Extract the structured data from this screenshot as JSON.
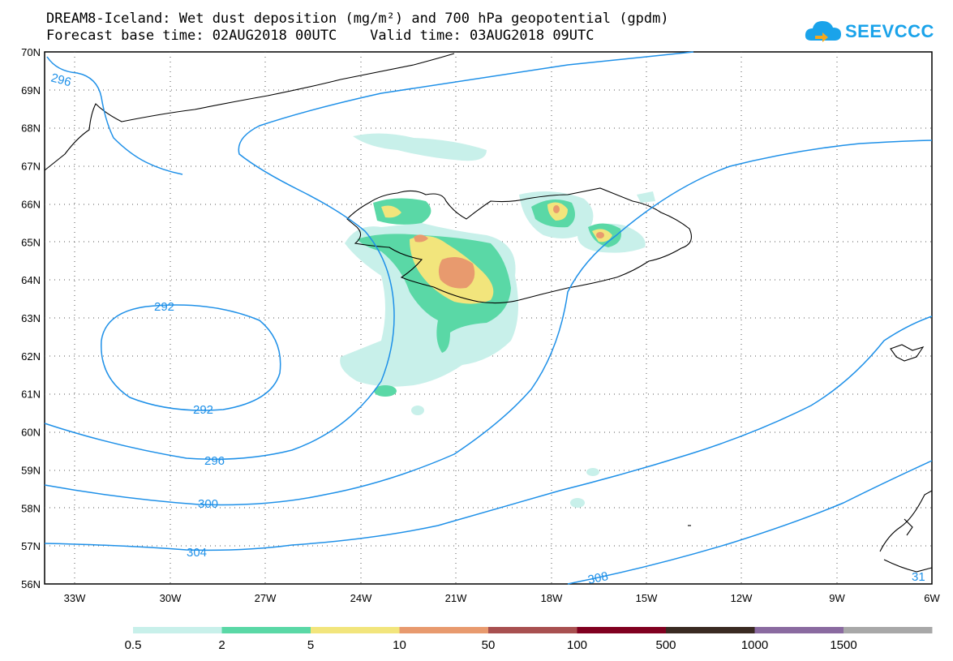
{
  "header": {
    "title": "DREAM8-Iceland: Wet dust deposition (mg/m²) and 700 hPa geopotential (gpdm)",
    "subtitle": "Forecast base time: 02AUG2018 00UTC    Valid time: 03AUG2018 09UTC"
  },
  "logo": {
    "text": "SEEVCCC",
    "icon": "cloud-icon",
    "color": "#1aa3ea"
  },
  "map": {
    "lat_range": [
      56,
      70
    ],
    "lon_range": [
      -34.2,
      -6
    ],
    "lat_labels": [
      "70N",
      "69N",
      "68N",
      "67N",
      "66N",
      "65N",
      "64N",
      "63N",
      "62N",
      "61N",
      "60N",
      "59N",
      "58N",
      "57N",
      "56N"
    ],
    "lon_labels": [
      "33W",
      "30W",
      "27W",
      "24W",
      "21W",
      "18W",
      "15W",
      "12W",
      "9W",
      "6W"
    ],
    "contour_color": "#1e90e8",
    "contours": [
      {
        "label": "292"
      },
      {
        "label": "296"
      },
      {
        "label": "300"
      },
      {
        "label": "304"
      },
      {
        "label": "308"
      },
      {
        "label": "31"
      }
    ]
  },
  "legend": {
    "labels": [
      "0.5",
      "2",
      "5",
      "10",
      "50",
      "100",
      "500",
      "1000",
      "1500"
    ],
    "colors": [
      "#c8f0ea",
      "#5ad8a6",
      "#f2e57c",
      "#e89a6e",
      "#a85050",
      "#800020",
      "#3a2a22",
      "#8a6aa0",
      "#a8a8a8"
    ]
  }
}
